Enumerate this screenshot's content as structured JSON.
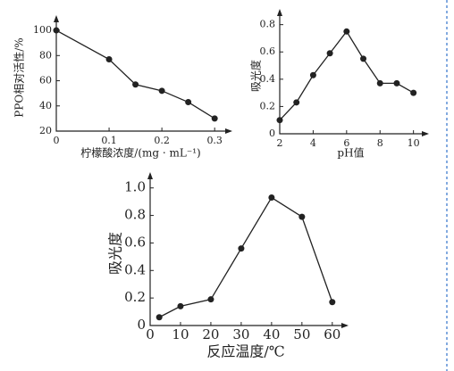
{
  "chart_data": [
    {
      "type": "line",
      "x_label": "柠檬酸浓度/(mg · mL⁻¹)",
      "y_label": "PPO相对活性/%",
      "x": [
        0,
        0.1,
        0.15,
        0.2,
        0.25,
        0.3
      ],
      "values": [
        100,
        77,
        57,
        52,
        43,
        30
      ],
      "color": "#222",
      "xlim": [
        0,
        0.32
      ],
      "ylim": [
        20,
        105
      ],
      "xticks": [
        0,
        0.1,
        0.2,
        0.3
      ],
      "yticks": [
        20,
        40,
        60,
        80,
        100
      ]
    },
    {
      "type": "line",
      "x_label": "pH值",
      "y_label": "吸光度",
      "x": [
        2,
        3,
        4,
        5,
        6,
        7,
        8,
        9,
        10
      ],
      "values": [
        0.1,
        0.23,
        0.43,
        0.59,
        0.75,
        0.55,
        0.37,
        0.37,
        0.3
      ],
      "color": "#222",
      "xlim": [
        2,
        10.5
      ],
      "ylim": [
        0,
        0.85
      ],
      "xticks": [
        2,
        4,
        6,
        8,
        10
      ],
      "yticks": [
        0,
        0.2,
        0.4,
        0.6,
        0.8
      ]
    },
    {
      "type": "line",
      "x_label": "反应温度/℃",
      "y_label": "吸光度",
      "x": [
        3,
        10,
        20,
        30,
        40,
        50,
        60
      ],
      "values": [
        0.06,
        0.14,
        0.19,
        0.56,
        0.93,
        0.79,
        0.17
      ],
      "color": "#222",
      "xlim": [
        0,
        63
      ],
      "ylim": [
        0,
        1.05
      ],
      "xticks": [
        0,
        10,
        20,
        30,
        40,
        50,
        60
      ],
      "yticks": [
        0,
        0.2,
        0.4,
        0.6,
        0.8,
        {
          "value": 1,
          "label": "1.0"
        }
      ]
    }
  ]
}
